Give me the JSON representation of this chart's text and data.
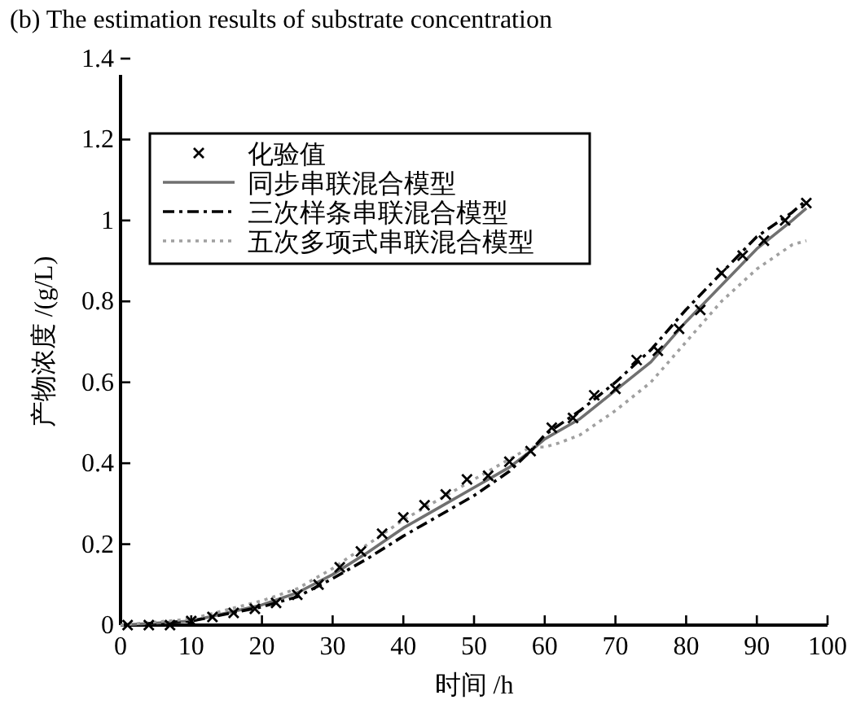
{
  "chart_data": {
    "type": "line",
    "title": "(b) The estimation results of substrate concentration",
    "xlabel": "时间 /h",
    "ylabel": "产物浓度 /(g/L)",
    "xlim": [
      0,
      100
    ],
    "xticks": [
      0,
      10,
      20,
      30,
      40,
      50,
      60,
      70,
      80,
      90,
      100
    ],
    "ylim": [
      0,
      1.4
    ],
    "yticks": [
      0,
      0.2,
      0.4,
      0.6,
      0.8,
      1.0,
      1.2,
      1.4
    ],
    "grid": false,
    "legend": "top left",
    "series": [
      {
        "name": "化验值",
        "type": "scatter",
        "marker": "cross",
        "color": "#000000",
        "x": [
          1,
          4,
          7,
          10,
          13,
          16,
          19,
          22,
          25,
          28,
          31,
          34,
          37,
          40,
          43,
          46,
          49,
          52,
          55,
          58,
          61,
          64,
          67,
          70,
          73,
          76,
          79,
          82,
          85,
          88,
          91,
          94,
          97
        ],
        "values": [
          0,
          0,
          0,
          0.01,
          0.02,
          0.03,
          0.04,
          0.055,
          0.075,
          0.1,
          0.143,
          0.182,
          0.226,
          0.266,
          0.296,
          0.323,
          0.36,
          0.369,
          0.404,
          0.43,
          0.488,
          0.512,
          0.568,
          0.584,
          0.655,
          0.678,
          0.732,
          0.779,
          0.87,
          0.913,
          0.95,
          1.0,
          1.043
        ]
      },
      {
        "name": "同步串联混合模型",
        "line_style": "solid",
        "color": "#707070",
        "x": [
          0,
          10,
          20,
          25,
          30,
          35,
          40,
          45,
          50,
          55,
          58,
          60,
          65,
          70,
          75,
          80,
          85,
          90,
          95,
          97
        ],
        "values": [
          0,
          0.01,
          0.05,
          0.08,
          0.125,
          0.18,
          0.24,
          0.29,
          0.34,
          0.39,
          0.43,
          0.46,
          0.51,
          0.58,
          0.65,
          0.75,
          0.84,
          0.93,
          1.0,
          1.03
        ]
      },
      {
        "name": "三次样条串联混合模型",
        "line_style": "dashdot",
        "color": "#000000",
        "x": [
          0,
          10,
          20,
          25,
          30,
          35,
          40,
          45,
          50,
          55,
          58,
          60,
          65,
          70,
          75,
          80,
          85,
          90,
          95,
          97
        ],
        "values": [
          0,
          0.01,
          0.045,
          0.07,
          0.115,
          0.165,
          0.22,
          0.27,
          0.32,
          0.38,
          0.43,
          0.47,
          0.53,
          0.6,
          0.68,
          0.78,
          0.87,
          0.96,
          1.02,
          1.05
        ]
      },
      {
        "name": "五次多项式串联混合模型",
        "line_style": "dotted",
        "color": "#a0a0a0",
        "x": [
          0,
          10,
          20,
          25,
          30,
          35,
          40,
          45,
          50,
          55,
          58,
          60,
          62,
          65,
          70,
          75,
          80,
          85,
          90,
          95,
          97
        ],
        "values": [
          0,
          0.015,
          0.06,
          0.09,
          0.14,
          0.2,
          0.26,
          0.31,
          0.36,
          0.41,
          0.44,
          0.44,
          0.45,
          0.47,
          0.53,
          0.6,
          0.7,
          0.8,
          0.88,
          0.94,
          0.95
        ]
      }
    ]
  }
}
